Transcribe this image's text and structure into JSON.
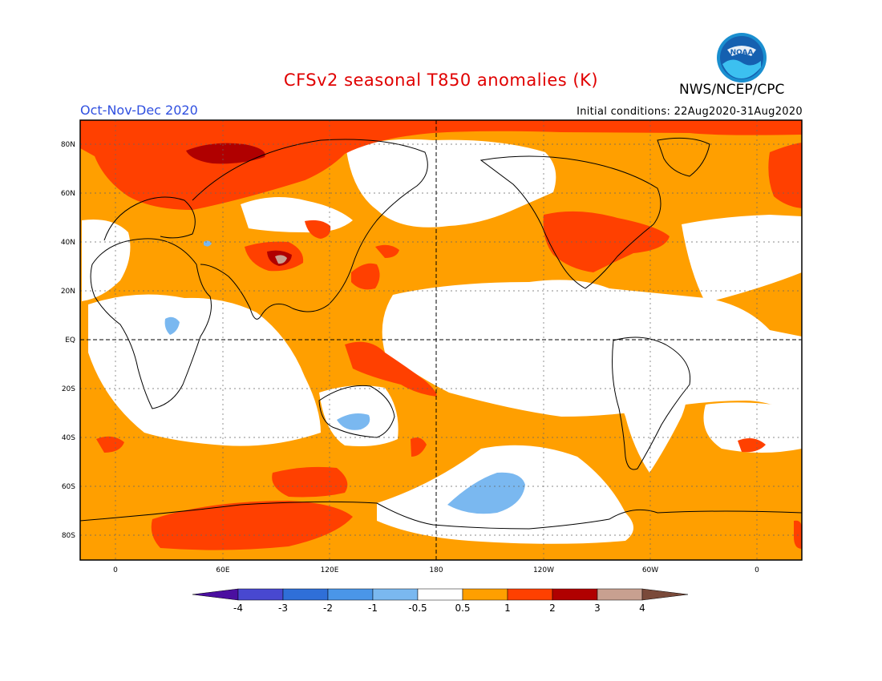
{
  "header": {
    "title": "CFSv2 seasonal T850 anomalies (K)",
    "season": "Oct-Nov-Dec 2020",
    "initial_conditions": "Initial conditions: 22Aug2020-31Aug2020",
    "agency": "NWS/NCEP/CPC",
    "logo_text": "NOAA"
  },
  "map": {
    "lat_labels": [
      "80N",
      "60N",
      "40N",
      "20N",
      "EQ",
      "20S",
      "40S",
      "60S",
      "80S"
    ],
    "lon_labels": [
      "0",
      "60E",
      "120E",
      "180",
      "120W",
      "60W",
      "0"
    ]
  },
  "colorbar": {
    "labels": [
      "-4",
      "-3",
      "-2",
      "-1",
      "-0.5",
      "0.5",
      "1",
      "2",
      "3",
      "4"
    ],
    "colors": [
      "#4b0fa0",
      "#4848d0",
      "#2f6fd8",
      "#4a96e8",
      "#7ab8f0",
      "#ffffff",
      "#ff9f00",
      "#ff4000",
      "#b00000",
      "#c8a090",
      "#7a4a3a"
    ]
  }
}
